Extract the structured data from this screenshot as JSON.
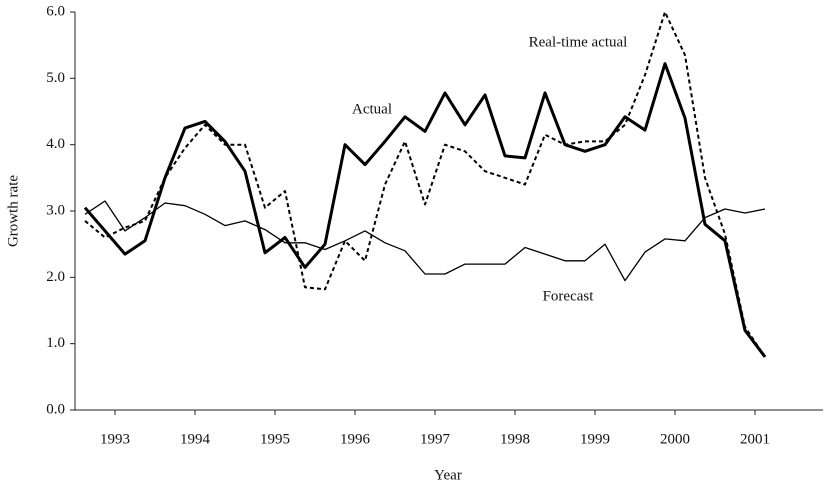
{
  "chart_data": {
    "type": "line",
    "x_label": "Year",
    "y_label": "Growth rate",
    "annotations": [
      "Actual",
      "Real-time actual",
      "Forecast"
    ],
    "x": [
      1993.125,
      1993.375,
      1993.625,
      1993.875,
      1994.125,
      1994.375,
      1994.625,
      1994.875,
      1995.125,
      1995.375,
      1995.625,
      1995.875,
      1996.125,
      1996.375,
      1996.625,
      1996.875,
      1997.125,
      1997.375,
      1997.625,
      1997.875,
      1998.125,
      1998.375,
      1998.625,
      1998.875,
      1999.125,
      1999.375,
      1999.625,
      1999.875,
      2000.125,
      2000.375,
      2000.625,
      2000.875,
      2001.125,
      2001.375,
      2001.625
    ],
    "series": [
      {
        "name": "Actual",
        "color": "#000000",
        "line_width": 3,
        "line_style": "solid",
        "values": [
          3.05,
          2.7,
          2.35,
          2.55,
          3.5,
          4.25,
          4.35,
          4.05,
          3.6,
          2.37,
          2.6,
          2.15,
          2.5,
          4.0,
          3.7,
          4.05,
          4.42,
          4.2,
          4.78,
          4.3,
          4.75,
          3.83,
          3.8,
          4.78,
          4.0,
          3.9,
          4.0,
          4.42,
          4.22,
          5.22,
          4.4,
          2.8,
          2.55,
          1.2,
          0.8
        ]
      },
      {
        "name": "Real-time actual",
        "color": "#000000",
        "line_width": 2,
        "line_style": "dashed",
        "values": [
          2.85,
          2.6,
          2.75,
          2.85,
          3.5,
          3.95,
          4.3,
          4.0,
          4.0,
          3.05,
          3.3,
          1.85,
          1.82,
          2.55,
          2.25,
          3.4,
          4.05,
          3.1,
          4.0,
          3.9,
          3.6,
          3.5,
          3.4,
          4.15,
          4.0,
          4.05,
          4.05,
          4.3,
          5.05,
          6.0,
          5.35,
          3.5,
          2.65,
          1.25,
          0.8
        ]
      },
      {
        "name": "Forecast",
        "color": "#000000",
        "line_width": 1.3,
        "line_style": "solid",
        "values": [
          2.95,
          3.15,
          2.7,
          2.9,
          3.12,
          3.08,
          2.95,
          2.78,
          2.85,
          2.72,
          2.52,
          2.52,
          2.42,
          2.55,
          2.7,
          2.52,
          2.4,
          2.05,
          2.05,
          2.2,
          2.2,
          2.2,
          2.45,
          2.35,
          2.25,
          2.25,
          2.5,
          1.95,
          2.38,
          2.58,
          2.55,
          2.9,
          3.03,
          2.97,
          3.03
        ]
      }
    ],
    "xlim": [
      1993,
      2002.35
    ],
    "xticks": [
      {
        "value": 1993.5,
        "label": "1993"
      },
      {
        "value": 1994.5,
        "label": "1994"
      },
      {
        "value": 1995.5,
        "label": "1995"
      },
      {
        "value": 1996.5,
        "label": "1996"
      },
      {
        "value": 1997.5,
        "label": "1997"
      },
      {
        "value": 1998.5,
        "label": "1998"
      },
      {
        "value": 1999.5,
        "label": "1999"
      },
      {
        "value": 2000.5,
        "label": "2000"
      },
      {
        "value": 2001.5,
        "label": "2001"
      }
    ],
    "ylim": [
      0,
      6
    ],
    "yticks": [
      {
        "value": 0,
        "label": "0.0"
      },
      {
        "value": 1,
        "label": "1.0"
      },
      {
        "value": 2,
        "label": "2.0"
      },
      {
        "value": 3,
        "label": "3.0"
      },
      {
        "value": 4,
        "label": "4.0"
      },
      {
        "value": 5,
        "label": "5.0"
      },
      {
        "value": 6,
        "label": "6.0"
      }
    ],
    "grid": false
  }
}
